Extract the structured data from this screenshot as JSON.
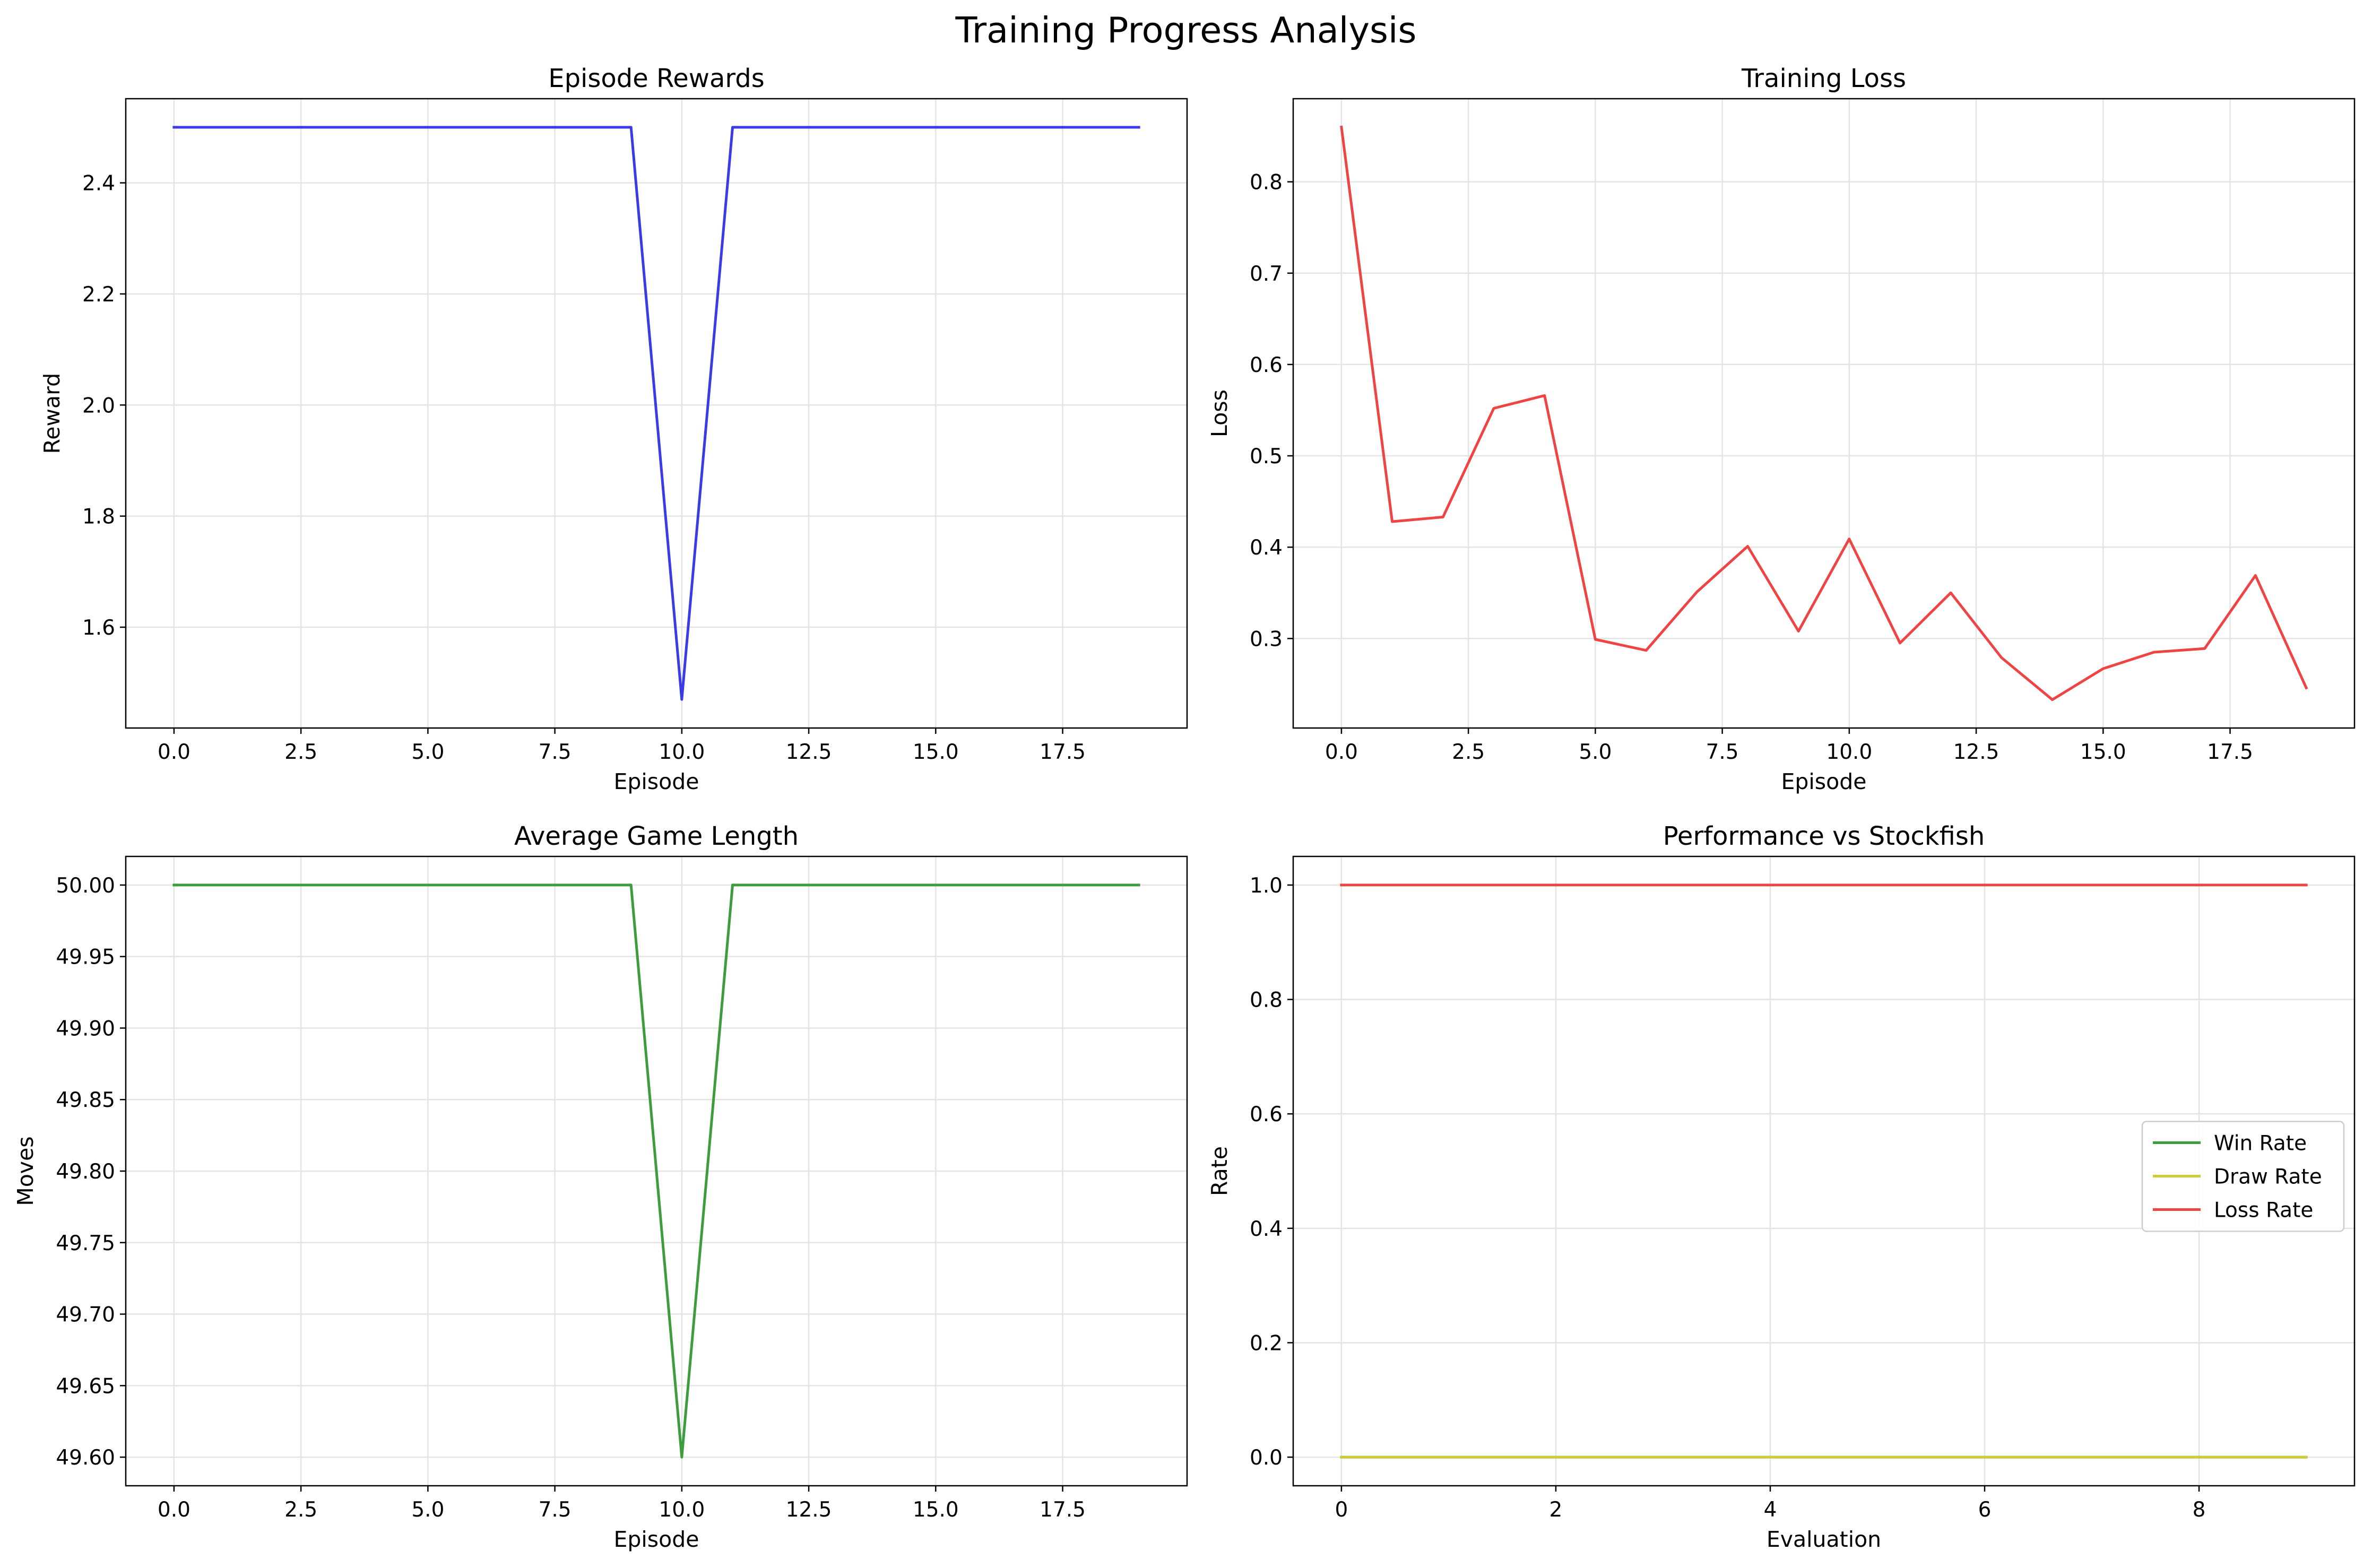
{
  "figure_title": "Training Progress Analysis",
  "colors": {
    "rewards_line": "#3a3ae6",
    "loss_line": "#ee4444",
    "length_line": "#3d9c3d",
    "win_line": "#3d9c3d",
    "draw_line": "#cccc33",
    "loss_rate_line": "#ee4444",
    "grid": "#e4e4e4",
    "axis": "#000000"
  },
  "chart_data": [
    {
      "type": "line",
      "title": "Episode Rewards",
      "xlabel": "Episode",
      "ylabel": "Reward",
      "grid": true,
      "xlim": [
        -0.95,
        19.95
      ],
      "ylim": [
        1.4185,
        2.5515
      ],
      "xticks": [
        0,
        2.5,
        5,
        7.5,
        10,
        12.5,
        15,
        17.5
      ],
      "xtick_labels": [
        "0.0",
        "2.5",
        "5.0",
        "7.5",
        "10.0",
        "12.5",
        "15.0",
        "17.5"
      ],
      "yticks": [
        1.6,
        1.8,
        2.0,
        2.2,
        2.4
      ],
      "ytick_labels": [
        "1.6",
        "1.8",
        "2.0",
        "2.2",
        "2.4"
      ],
      "series": [
        {
          "color": "#3a3ae6",
          "x": [
            0,
            1,
            2,
            3,
            4,
            5,
            6,
            7,
            8,
            9,
            10,
            11,
            12,
            13,
            14,
            15,
            16,
            17,
            18,
            19
          ],
          "y": [
            2.5,
            2.5,
            2.5,
            2.5,
            2.5,
            2.5,
            2.5,
            2.5,
            2.5,
            2.5,
            1.47,
            2.5,
            2.5,
            2.5,
            2.5,
            2.5,
            2.5,
            2.5,
            2.5,
            2.5
          ]
        }
      ]
    },
    {
      "type": "line",
      "title": "Training Loss",
      "xlabel": "Episode",
      "ylabel": "Loss",
      "grid": true,
      "xlim": [
        -0.95,
        19.95
      ],
      "ylim": [
        0.202,
        0.891
      ],
      "xticks": [
        0,
        2.5,
        5,
        7.5,
        10,
        12.5,
        15,
        17.5
      ],
      "xtick_labels": [
        "0.0",
        "2.5",
        "5.0",
        "7.5",
        "10.0",
        "12.5",
        "15.0",
        "17.5"
      ],
      "yticks": [
        0.3,
        0.4,
        0.5,
        0.6,
        0.7,
        0.8
      ],
      "ytick_labels": [
        "0.3",
        "0.4",
        "0.5",
        "0.6",
        "0.7",
        "0.8"
      ],
      "series": [
        {
          "color": "#ee4444",
          "x": [
            0,
            1,
            2,
            3,
            4,
            5,
            6,
            7,
            8,
            9,
            10,
            11,
            12,
            13,
            14,
            15,
            16,
            17,
            18,
            19
          ],
          "y": [
            0.86,
            0.428,
            0.433,
            0.552,
            0.566,
            0.299,
            0.287,
            0.351,
            0.401,
            0.308,
            0.409,
            0.295,
            0.35,
            0.279,
            0.233,
            0.267,
            0.285,
            0.289,
            0.369,
            0.246
          ]
        }
      ]
    },
    {
      "type": "line",
      "title": "Average Game Length",
      "xlabel": "Episode",
      "ylabel": "Moves",
      "grid": true,
      "xlim": [
        -0.95,
        19.95
      ],
      "ylim": [
        49.58,
        50.02
      ],
      "xticks": [
        0,
        2.5,
        5,
        7.5,
        10,
        12.5,
        15,
        17.5
      ],
      "xtick_labels": [
        "0.0",
        "2.5",
        "5.0",
        "7.5",
        "10.0",
        "12.5",
        "15.0",
        "17.5"
      ],
      "yticks": [
        49.6,
        49.65,
        49.7,
        49.75,
        49.8,
        49.85,
        49.9,
        49.95,
        50.0
      ],
      "ytick_labels": [
        "49.60",
        "49.65",
        "49.70",
        "49.75",
        "49.80",
        "49.85",
        "49.90",
        "49.95",
        "50.00"
      ],
      "series": [
        {
          "color": "#3d9c3d",
          "x": [
            0,
            1,
            2,
            3,
            4,
            5,
            6,
            7,
            8,
            9,
            10,
            11,
            12,
            13,
            14,
            15,
            16,
            17,
            18,
            19
          ],
          "y": [
            50.0,
            50.0,
            50.0,
            50.0,
            50.0,
            50.0,
            50.0,
            50.0,
            50.0,
            50.0,
            49.6,
            50.0,
            50.0,
            50.0,
            50.0,
            50.0,
            50.0,
            50.0,
            50.0,
            50.0
          ]
        }
      ]
    },
    {
      "type": "line",
      "title": "Performance vs Stockfish",
      "xlabel": "Evaluation",
      "ylabel": "Rate",
      "grid": true,
      "legend": "center-right",
      "xlim": [
        -0.45,
        9.45
      ],
      "ylim": [
        -0.05,
        1.05
      ],
      "xticks": [
        0,
        2,
        4,
        6,
        8
      ],
      "xtick_labels": [
        "0",
        "2",
        "4",
        "6",
        "8"
      ],
      "yticks": [
        0.0,
        0.2,
        0.4,
        0.6,
        0.8,
        1.0
      ],
      "ytick_labels": [
        "0.0",
        "0.2",
        "0.4",
        "0.6",
        "0.8",
        "1.0"
      ],
      "series": [
        {
          "name": "Win Rate",
          "color": "#3d9c3d",
          "x": [
            0,
            1,
            2,
            3,
            4,
            5,
            6,
            7,
            8,
            9
          ],
          "y": [
            0,
            0,
            0,
            0,
            0,
            0,
            0,
            0,
            0,
            0
          ]
        },
        {
          "name": "Draw Rate",
          "color": "#cccc33",
          "x": [
            0,
            1,
            2,
            3,
            4,
            5,
            6,
            7,
            8,
            9
          ],
          "y": [
            0,
            0,
            0,
            0,
            0,
            0,
            0,
            0,
            0,
            0
          ]
        },
        {
          "name": "Loss Rate",
          "color": "#ee4444",
          "x": [
            0,
            1,
            2,
            3,
            4,
            5,
            6,
            7,
            8,
            9
          ],
          "y": [
            1,
            1,
            1,
            1,
            1,
            1,
            1,
            1,
            1,
            1
          ]
        }
      ]
    }
  ]
}
